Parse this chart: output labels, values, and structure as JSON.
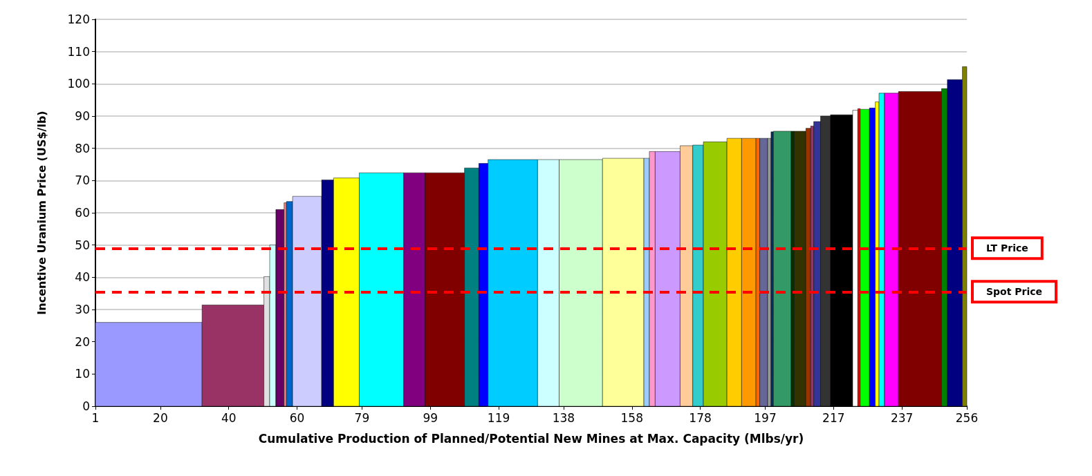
{
  "chart_data": {
    "type": "histogram",
    "xlabel": "Cumulative Production of Planned/Potential New Mines at Max. Capacity (Mlbs/yr)",
    "ylabel": "Incentive Uranium Price (US$/lb)",
    "bins": [
      1,
      32.2,
      50.3,
      52.0,
      53.8,
      56.2,
      56.9,
      58.7,
      67.2,
      70.7,
      78.2,
      91.2,
      97.5,
      109.0,
      113.2,
      115.9,
      130.4,
      136.7,
      149.4,
      161.5,
      163.1,
      164.8,
      172.1,
      175.8,
      178.9,
      185.8,
      190.1,
      194.3,
      195.4,
      197.7,
      198.7,
      199.4,
      204.6,
      205.5,
      208.9,
      210.3,
      211.2,
      213.2,
      216.1,
      222.6,
      224.1,
      224.8,
      227.5,
      229.2,
      230.3,
      231.9,
      236.0,
      248.6,
      250.3,
      254.7,
      256
    ],
    "values": [
      26,
      31.4,
      40.2,
      50,
      61,
      63.1,
      63.5,
      65.1,
      70.2,
      70.8,
      72.4,
      72.4,
      72.4,
      73.9,
      75.3,
      76.5,
      76.5,
      76.5,
      76.9,
      76.9,
      79,
      79,
      80.8,
      81,
      82,
      83.1,
      83.1,
      83.1,
      83.1,
      83.1,
      85.1,
      85.3,
      85.3,
      85.3,
      86.2,
      86.9,
      88.3,
      90,
      90.4,
      91.8,
      92.3,
      92.1,
      92.5,
      94.4,
      97.1,
      97.1,
      97.6,
      98.5,
      101.3,
      105.3
    ],
    "colors": [
      "#9999ff",
      "#993366",
      "#e0e0e0",
      "#ccffff",
      "#660066",
      "#ff8080",
      "#0066cc",
      "#ccccff",
      "#000080",
      "#ffff00",
      "#00ffff",
      "#800080",
      "#800000",
      "#008080",
      "#0000ff",
      "#00ccff",
      "#ccffff",
      "#ccffcc",
      "#ffff99",
      "#99ccff",
      "#ff99cc",
      "#cc99ff",
      "#ffcc99",
      "#33cccc",
      "#99cc00",
      "#ffcc00",
      "#ff9900",
      "#ff6600",
      "#666699",
      "#969696",
      "#003366",
      "#339966",
      "#003300",
      "#333300",
      "#993300",
      "#993366",
      "#333399",
      "#333333",
      "#000000",
      "#ffffff",
      "#ff0000",
      "#00ff00",
      "#0000ff",
      "#ffff00",
      "#00ffff",
      "#ff00ff",
      "#800000",
      "#008000",
      "#000080",
      "#808000"
    ],
    "xlim": [
      1,
      256
    ],
    "xticks": [
      1,
      20,
      40,
      60,
      79,
      99,
      119,
      138,
      158,
      178,
      197,
      217,
      237,
      256
    ],
    "ylim": [
      0,
      120
    ],
    "yticks": [
      0,
      10,
      20,
      30,
      40,
      50,
      60,
      70,
      80,
      90,
      100,
      110,
      120
    ],
    "grid": "y",
    "ref_lines": [
      {
        "axis": "y",
        "value": 49,
        "label": "LT Price",
        "color": "#ff0000",
        "line_style": "dashed"
      },
      {
        "axis": "y",
        "value": 35.5,
        "label": "Spot Price",
        "color": "#ff0000",
        "line_style": "dashed"
      }
    ]
  }
}
